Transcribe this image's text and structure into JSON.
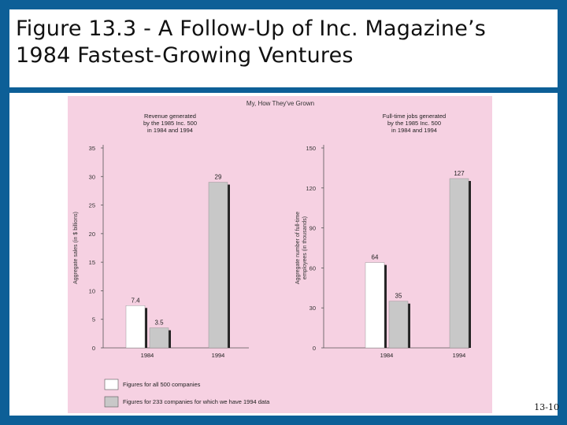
{
  "slide": {
    "title_line1": "Figure 13.3 - A Follow-Up of Inc. Magazine’s",
    "title_line2": "1984 Fastest-Growing Ventures",
    "page_number": "13-10"
  },
  "colors": {
    "frame": "#0d5f97",
    "figure_bg": "#f6d1e2",
    "bar_all_500": "#ffffff",
    "bar_233": "#c8c8c8",
    "bar_shadow": "#222222"
  },
  "figure": {
    "heading": "My, How They've Grown",
    "legend": [
      {
        "label": "Figures for all 500 companies",
        "color": "#ffffff"
      },
      {
        "label": "Figures for 233 companies for which we have 1994 data",
        "color": "#c8c8c8"
      }
    ]
  },
  "chart_data": [
    {
      "type": "bar",
      "title": "Revenue generated by the 1985 Inc. 500 in 1984 and 1994",
      "title_lines": [
        "Revenue generated",
        "by the 1985 Inc. 500",
        "in 1984 and 1994"
      ],
      "ylabel": "Aggregate sales (in $ billions)",
      "xlabel": "",
      "categories": [
        "1984",
        "1994"
      ],
      "ylim": [
        0,
        35
      ],
      "yticks": [
        0,
        5,
        10,
        15,
        20,
        25,
        30,
        35
      ],
      "series": [
        {
          "name": "Figures for all 500 companies",
          "values": [
            7.4,
            null
          ]
        },
        {
          "name": "Figures for 233 companies for which we have 1994 data",
          "values": [
            3.5,
            29
          ]
        }
      ],
      "data_labels": [
        [
          "7.4",
          null
        ],
        [
          "3.5",
          "29"
        ]
      ]
    },
    {
      "type": "bar",
      "title": "Full-time jobs generated by the 1985 Inc. 500 in 1984 and 1994",
      "title_lines": [
        "Full-time jobs generated",
        "by the 1985 Inc. 500",
        "in 1984 and 1994"
      ],
      "ylabel": "Aggregate number of full-time employees (in thousands)",
      "ylabel_lines": [
        "Aggregate number of full-time",
        "employees (in thousands)"
      ],
      "xlabel": "",
      "categories": [
        "1984",
        "1994"
      ],
      "ylim": [
        0,
        150
      ],
      "yticks": [
        0,
        30,
        60,
        90,
        120,
        150
      ],
      "series": [
        {
          "name": "Figures for all 500 companies",
          "values": [
            64,
            null
          ]
        },
        {
          "name": "Figures for 233 companies for which we have 1994 data",
          "values": [
            35,
            127
          ]
        }
      ],
      "data_labels": [
        [
          "64",
          null
        ],
        [
          "35",
          "127"
        ]
      ]
    }
  ]
}
